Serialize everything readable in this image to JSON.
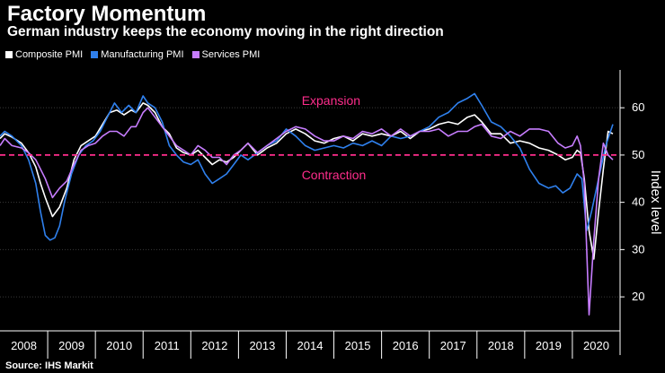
{
  "chart_data": {
    "type": "line",
    "title": "Factory Momentum",
    "subtitle": "German industry keeps the economy moving in the right direction",
    "ylabel": "Index level",
    "source": "Source: IHS Markit",
    "ylim": [
      13,
      68
    ],
    "yticks": [
      20,
      30,
      40,
      50,
      60
    ],
    "xlim": [
      2008.0,
      2021.0
    ],
    "x_tick_labels": [
      "2008",
      "2009",
      "2010",
      "2011",
      "2012",
      "2013",
      "2014",
      "2015",
      "2016",
      "2017",
      "2018",
      "2019",
      "2020"
    ],
    "threshold": 50,
    "annotations": [
      {
        "text": "Expansion",
        "x": 2014.4,
        "y": 57.9
      },
      {
        "text": "Contraction",
        "x": 2014.4,
        "y": 53.5
      }
    ],
    "colors": {
      "background": "#000000",
      "composite": "#ffffff",
      "manufacturing": "#2f80ed",
      "services": "#c77dff",
      "threshold": "#ff2d8c",
      "annotation": "#ff2d8c",
      "grid": "#3a3a3a",
      "axis": "#ffffff"
    },
    "series": [
      {
        "name": "Composite PMI",
        "key": "composite",
        "x": [
          2008.0,
          2008.1,
          2008.25,
          2008.45,
          2008.6,
          2008.75,
          2008.85,
          2008.95,
          2009.1,
          2009.25,
          2009.4,
          2009.55,
          2009.7,
          2009.85,
          2010.0,
          2010.15,
          2010.3,
          2010.45,
          2010.6,
          2010.75,
          2010.85,
          2011.0,
          2011.1,
          2011.25,
          2011.4,
          2011.55,
          2011.7,
          2011.85,
          2012.0,
          2012.15,
          2012.3,
          2012.45,
          2012.6,
          2012.75,
          2012.9,
          2013.05,
          2013.2,
          2013.4,
          2013.6,
          2013.8,
          2014.0,
          2014.2,
          2014.4,
          2014.6,
          2014.8,
          2015.0,
          2015.2,
          2015.4,
          2015.6,
          2015.8,
          2016.0,
          2016.2,
          2016.4,
          2016.6,
          2016.8,
          2017.0,
          2017.2,
          2017.4,
          2017.6,
          2017.8,
          2017.95,
          2018.1,
          2018.3,
          2018.5,
          2018.7,
          2018.9,
          2019.1,
          2019.3,
          2019.5,
          2019.7,
          2019.85,
          2020.0,
          2020.1,
          2020.17,
          2020.25,
          2020.35,
          2020.45,
          2020.55,
          2020.65,
          2020.75,
          2020.85
        ],
        "y": [
          53.5,
          54.5,
          53.8,
          52.5,
          50.5,
          47.5,
          44,
          41,
          37,
          39,
          43,
          49,
          52,
          53,
          54,
          56.5,
          59,
          59.5,
          58.5,
          59.5,
          59,
          61,
          60.5,
          59,
          56,
          54.5,
          51.5,
          50.5,
          50,
          51,
          49.5,
          48,
          49,
          48.5,
          49.5,
          51,
          52.5,
          50,
          51.5,
          52.5,
          54.5,
          55.5,
          54.5,
          53,
          52.5,
          53.5,
          54,
          53,
          54.5,
          54,
          54.5,
          54,
          55,
          53.5,
          55,
          55.5,
          56.5,
          57,
          56.5,
          58,
          58.5,
          57,
          54.5,
          54.5,
          52.5,
          53,
          52.5,
          51.5,
          51,
          50,
          49,
          49.5,
          51,
          50.5,
          45,
          34,
          28,
          38,
          47,
          55,
          54.5
        ]
      },
      {
        "name": "Manufacturing PMI",
        "key": "manufacturing",
        "x": [
          2008.0,
          2008.1,
          2008.25,
          2008.45,
          2008.6,
          2008.75,
          2008.85,
          2008.95,
          2009.05,
          2009.15,
          2009.25,
          2009.35,
          2009.5,
          2009.65,
          2009.8,
          2009.95,
          2010.1,
          2010.25,
          2010.4,
          2010.55,
          2010.7,
          2010.85,
          2011.0,
          2011.1,
          2011.25,
          2011.4,
          2011.55,
          2011.7,
          2011.85,
          2012.0,
          2012.15,
          2012.3,
          2012.45,
          2012.6,
          2012.75,
          2012.9,
          2013.05,
          2013.2,
          2013.4,
          2013.6,
          2013.8,
          2014.0,
          2014.2,
          2014.4,
          2014.6,
          2014.8,
          2015.0,
          2015.2,
          2015.4,
          2015.6,
          2015.8,
          2016.0,
          2016.2,
          2016.4,
          2016.6,
          2016.8,
          2017.0,
          2017.2,
          2017.4,
          2017.6,
          2017.8,
          2017.95,
          2018.1,
          2018.3,
          2018.5,
          2018.7,
          2018.9,
          2019.1,
          2019.3,
          2019.5,
          2019.65,
          2019.8,
          2019.95,
          2020.1,
          2020.2,
          2020.3,
          2020.4,
          2020.55,
          2020.7,
          2020.85
        ],
        "y": [
          54,
          55,
          54,
          52,
          49,
          44,
          38,
          33,
          32,
          32.5,
          35,
          40,
          46,
          50,
          52,
          53,
          55,
          58,
          61,
          59,
          60.5,
          59,
          62.5,
          61,
          60,
          57,
          52,
          50,
          48.5,
          48,
          49,
          46,
          44,
          45,
          46,
          48,
          50,
          49,
          50.5,
          52,
          53,
          55.5,
          54,
          52,
          51,
          51.5,
          52,
          51.5,
          52.5,
          52,
          53,
          52,
          54,
          53.5,
          54,
          55,
          56,
          58,
          59,
          61,
          62,
          63,
          60.5,
          57,
          56,
          54,
          51.5,
          47,
          44,
          43,
          43.5,
          42,
          43,
          46,
          45,
          34,
          38,
          45,
          52,
          56.5
        ]
      },
      {
        "name": "Services PMI",
        "key": "services",
        "x": [
          2008.0,
          2008.1,
          2008.25,
          2008.45,
          2008.6,
          2008.75,
          2008.85,
          2008.95,
          2009.1,
          2009.25,
          2009.4,
          2009.55,
          2009.7,
          2009.85,
          2010.0,
          2010.15,
          2010.3,
          2010.45,
          2010.6,
          2010.75,
          2010.85,
          2011.0,
          2011.1,
          2011.25,
          2011.4,
          2011.55,
          2011.7,
          2011.85,
          2012.0,
          2012.15,
          2012.3,
          2012.45,
          2012.6,
          2012.75,
          2012.9,
          2013.05,
          2013.2,
          2013.4,
          2013.6,
          2013.8,
          2014.0,
          2014.2,
          2014.4,
          2014.6,
          2014.8,
          2015.0,
          2015.2,
          2015.4,
          2015.6,
          2015.8,
          2016.0,
          2016.2,
          2016.4,
          2016.6,
          2016.8,
          2017.0,
          2017.2,
          2017.4,
          2017.6,
          2017.8,
          2017.95,
          2018.1,
          2018.3,
          2018.5,
          2018.7,
          2018.9,
          2019.1,
          2019.3,
          2019.5,
          2019.7,
          2019.85,
          2020.0,
          2020.1,
          2020.17,
          2020.25,
          2020.35,
          2020.45,
          2020.55,
          2020.65,
          2020.75,
          2020.85
        ],
        "y": [
          52,
          53.5,
          52,
          51.5,
          50.5,
          49,
          47,
          45,
          41,
          43,
          44.5,
          48,
          51,
          52,
          52.5,
          54,
          55,
          55,
          54,
          56,
          56,
          59,
          60,
          58,
          56,
          54,
          52,
          51,
          50,
          52,
          51,
          49.5,
          49.5,
          48,
          50,
          51,
          52.5,
          50.5,
          52,
          53.5,
          55,
          56,
          55.5,
          54,
          53,
          53,
          54,
          53.5,
          55,
          54.5,
          55.5,
          54,
          55.5,
          54,
          55,
          55,
          55.5,
          54,
          55,
          55,
          56,
          56.5,
          54,
          53.5,
          55,
          54,
          55.5,
          55.5,
          55,
          52.5,
          51.5,
          52,
          54,
          52,
          44,
          16.2,
          32,
          45,
          52.5,
          50,
          49
        ]
      }
    ]
  }
}
